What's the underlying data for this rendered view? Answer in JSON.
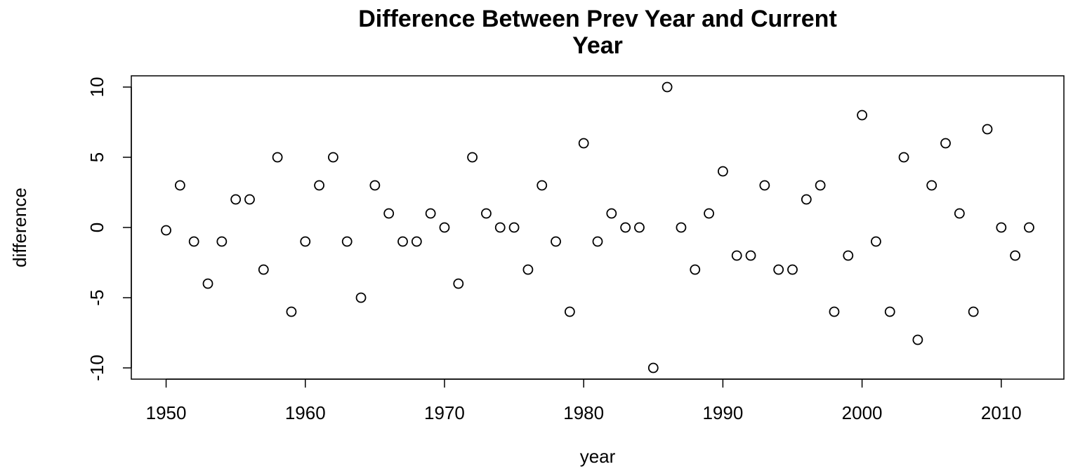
{
  "chart_data": {
    "type": "scatter",
    "title": "Difference Between Prev Year and Current Year",
    "x_label": "year",
    "y_label": "difference",
    "x": [
      1950,
      1951,
      1952,
      1953,
      1954,
      1955,
      1956,
      1957,
      1958,
      1959,
      1960,
      1961,
      1962,
      1963,
      1964,
      1965,
      1966,
      1967,
      1968,
      1969,
      1970,
      1971,
      1972,
      1973,
      1974,
      1975,
      1976,
      1977,
      1978,
      1979,
      1980,
      1981,
      1982,
      1983,
      1984,
      1985,
      1986,
      1987,
      1988,
      1989,
      1990,
      1991,
      1992,
      1993,
      1994,
      1995,
      1996,
      1997,
      1998,
      1999,
      2000,
      2001,
      2002,
      2003,
      2004,
      2005,
      2006,
      2007,
      2008,
      2009,
      2010,
      2011,
      2012
    ],
    "values": [
      -0.2,
      3,
      -1,
      -4,
      -1,
      2,
      2,
      -3,
      5,
      -6,
      -1,
      3,
      5,
      -1,
      -5,
      3,
      1,
      -1,
      -1,
      1,
      0,
      -4,
      5,
      1,
      0,
      0,
      -3,
      3,
      -1,
      -6,
      6,
      -1,
      1,
      0,
      0,
      -10,
      10,
      0,
      -3,
      1,
      4,
      -2,
      -2,
      3,
      -3,
      -3,
      2,
      3,
      -6,
      -2,
      8,
      -1,
      -6,
      5,
      -8,
      3,
      6,
      1,
      -6,
      7,
      0,
      -2,
      0
    ],
    "color": "#000000",
    "xlim": [
      1947.5,
      2014.5
    ],
    "xticks": [
      1950,
      1960,
      1970,
      1980,
      1990,
      2000,
      2010
    ],
    "ylim": [
      -10.8,
      10.8
    ],
    "yticks": [
      -10,
      -5,
      0,
      5,
      10
    ],
    "grid": false
  }
}
